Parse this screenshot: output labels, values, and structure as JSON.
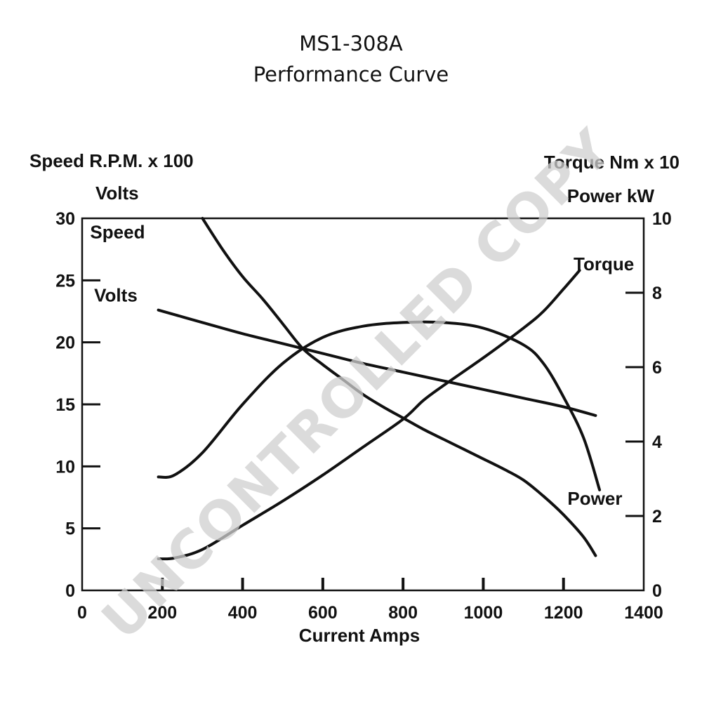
{
  "chart_data": {
    "type": "line",
    "title": "MS1-308A",
    "subtitle": "Performance Curve",
    "xlabel": "Current Amps",
    "ylabel_left": [
      "Speed R.P.M. x 100",
      "Volts"
    ],
    "ylabel_right": [
      "Torque Nm x 10",
      "Power kW"
    ],
    "xlim": [
      0,
      1400
    ],
    "ylim_left": [
      0,
      30
    ],
    "ylim_right": [
      0,
      10
    ],
    "x_ticks": [
      "0",
      "200",
      "400",
      "600",
      "800",
      "1000",
      "1200",
      "1400"
    ],
    "y_ticks_left": [
      "0",
      "5",
      "10",
      "15",
      "20",
      "25",
      "30"
    ],
    "y_ticks_right": [
      "0",
      "2",
      "4",
      "6",
      "8",
      "10"
    ],
    "grid": false,
    "legend": "none",
    "series": [
      {
        "name": "Speed",
        "axis": "left",
        "label_at": [
          20,
          28.4
        ],
        "points": [
          [
            300,
            30
          ],
          [
            350,
            27.5
          ],
          [
            400,
            25.3
          ],
          [
            450,
            23.5
          ],
          [
            500,
            21.5
          ],
          [
            550,
            19.5
          ],
          [
            600,
            18.2
          ],
          [
            650,
            17
          ],
          [
            700,
            15.8
          ],
          [
            750,
            14.8
          ],
          [
            800,
            13.9
          ],
          [
            850,
            13
          ],
          [
            900,
            12.2
          ],
          [
            950,
            11.4
          ],
          [
            1000,
            10.6
          ],
          [
            1050,
            9.8
          ],
          [
            1100,
            8.9
          ],
          [
            1150,
            7.6
          ],
          [
            1200,
            6.1
          ],
          [
            1250,
            4.3
          ],
          [
            1280,
            2.8
          ]
        ]
      },
      {
        "name": "Volts",
        "axis": "left",
        "label_at": [
          30,
          23.3
        ],
        "points": [
          [
            190,
            22.6
          ],
          [
            300,
            21.6
          ],
          [
            400,
            20.7
          ],
          [
            500,
            19.9
          ],
          [
            600,
            19.1
          ],
          [
            700,
            18.3
          ],
          [
            800,
            17.6
          ],
          [
            900,
            16.9
          ],
          [
            1000,
            16.2
          ],
          [
            1100,
            15.5
          ],
          [
            1200,
            14.8
          ],
          [
            1280,
            14.1
          ]
        ]
      },
      {
        "name": "Torque",
        "axis": "right",
        "label_at": [
          1225,
          8.6
        ],
        "points": [
          [
            190,
            0.85
          ],
          [
            230,
            0.87
          ],
          [
            300,
            1.1
          ],
          [
            400,
            1.75
          ],
          [
            500,
            2.4
          ],
          [
            600,
            3.1
          ],
          [
            700,
            3.85
          ],
          [
            800,
            4.6
          ],
          [
            850,
            5.1
          ],
          [
            900,
            5.5
          ],
          [
            1000,
            6.25
          ],
          [
            1100,
            7.05
          ],
          [
            1150,
            7.5
          ],
          [
            1200,
            8.1
          ],
          [
            1240,
            8.6
          ]
        ]
      },
      {
        "name": "Power",
        "axis": "right",
        "label_at": [
          1210,
          2.3
        ],
        "points": [
          [
            190,
            3.05
          ],
          [
            230,
            3.1
          ],
          [
            300,
            3.7
          ],
          [
            400,
            5.0
          ],
          [
            500,
            6.1
          ],
          [
            600,
            6.8
          ],
          [
            700,
            7.1
          ],
          [
            800,
            7.2
          ],
          [
            900,
            7.2
          ],
          [
            1000,
            7.05
          ],
          [
            1100,
            6.6
          ],
          [
            1150,
            6.1
          ],
          [
            1200,
            5.2
          ],
          [
            1250,
            4.1
          ],
          [
            1290,
            2.7
          ]
        ]
      }
    ]
  },
  "watermark": "UNCONTROLLED COPY"
}
